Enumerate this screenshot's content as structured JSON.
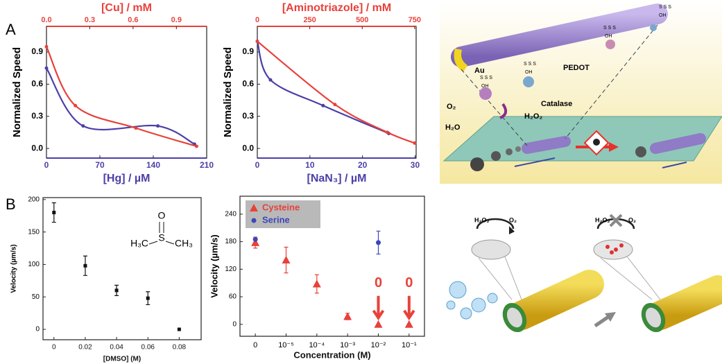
{
  "panel_labels": [
    "A",
    "B"
  ],
  "chart_data": [
    {
      "type": "line",
      "xlabel": "[Hg] / µM",
      "x2label": "[Cu] / mM",
      "ylabel": "Normalized Speed",
      "xcolor": "#4b3fa8",
      "x2color": "#e8413a",
      "xlim": [
        0,
        210
      ],
      "xticks": [
        0,
        70,
        140,
        210
      ],
      "x2lim": [
        0,
        1.11
      ],
      "x2ticks": [
        {
          "value": 0,
          "label": "0.0"
        },
        0.3,
        0.6,
        0.9
      ],
      "ylim": [
        -0.09,
        1.14
      ],
      "yticks": [
        {
          "value": 0,
          "label": "0.0"
        },
        0.3,
        0.6,
        0.9
      ],
      "series": [
        {
          "color": "#4b3fa8",
          "axis": "x",
          "x": [
            0,
            48,
            146,
            194
          ],
          "values": [
            0.75,
            0.21,
            0.21,
            0.04
          ]
        },
        {
          "color": "#e8413a",
          "axis": "x2",
          "x": [
            0,
            0.2,
            0.62,
            1.04
          ],
          "values": [
            0.95,
            0.4,
            0.19,
            0.02
          ]
        }
      ]
    },
    {
      "type": "line",
      "xlabel": "[NaN₃] / µM",
      "x2label": "[Aminotriazole] / mM",
      "ylabel": "Normalized Speed",
      "xcolor": "#4b3fa8",
      "x2color": "#e8413a",
      "xlim": [
        0,
        30.2
      ],
      "xticks": [
        0,
        10,
        20,
        30
      ],
      "x2lim": [
        0,
        757
      ],
      "x2ticks": [
        0,
        250,
        500,
        750
      ],
      "ylim": [
        -0.09,
        1.14
      ],
      "yticks": [
        {
          "value": 0,
          "label": "0.0"
        },
        0.3,
        0.6,
        0.9
      ],
      "series": [
        {
          "color": "#4b3fa8",
          "axis": "x",
          "x": [
            0,
            2.5,
            12.5,
            25
          ],
          "values": [
            1.0,
            0.64,
            0.4,
            0.14
          ]
        },
        {
          "color": "#e8413a",
          "axis": "x2",
          "x": [
            0,
            370,
            620,
            750
          ],
          "values": [
            1.0,
            0.41,
            0.15,
            0.05
          ]
        }
      ]
    },
    {
      "type": "scatter",
      "xlabel": "[DMSO] (M)",
      "ylabel": "Velocity (µm/s)",
      "color": "#111111",
      "xlim": [
        -0.007,
        0.094
      ],
      "xticks": [
        0,
        0.02,
        0.04,
        0.06,
        0.08
      ],
      "ylim": [
        -16,
        203
      ],
      "yticks": [
        0,
        50,
        100,
        150,
        200
      ],
      "x": [
        0,
        0.02,
        0.04,
        0.06,
        0.08
      ],
      "values": [
        180,
        98,
        60,
        48,
        0
      ],
      "errors": [
        15,
        15,
        8,
        10,
        null
      ],
      "structure_labels": [
        "O",
        "S",
        "H₃C",
        "CH₃"
      ]
    },
    {
      "type": "category-scatter",
      "xlabel": "Concentration (M)",
      "ylabel": "Velocity (µm/s)",
      "categories": [
        "0",
        "10⁻⁵",
        "10⁻⁴",
        "10⁻³",
        "10⁻²",
        "10⁻¹"
      ],
      "ylim": [
        -26,
        279
      ],
      "yticks": [
        0,
        60,
        120,
        180,
        240
      ],
      "legend": "top-left",
      "series": [
        {
          "name": "Cysteine",
          "color": "#e8413a",
          "marker": "triangle",
          "values": [
            178,
            140,
            88,
            17,
            0,
            0
          ],
          "errors": [
            12,
            28,
            20,
            7,
            null,
            null
          ]
        },
        {
          "name": "Serine",
          "color": "#3b47b8",
          "marker": "circle",
          "values": [
            185,
            null,
            null,
            null,
            178,
            null
          ],
          "errors": [
            null,
            null,
            null,
            null,
            25,
            null
          ]
        }
      ],
      "annotations": [
        "0",
        "0"
      ]
    }
  ],
  "illustrations": {
    "top": {
      "au": "Au",
      "pedot": "PEDOT",
      "catalase": "Catalase",
      "o2": "O₂",
      "h2o": "H₂O",
      "h2o2": "H₂O₂",
      "sss": "S S S",
      "oh": "OH"
    },
    "bottom": {
      "h2o2": "H₂O₂",
      "o2": "O₂"
    }
  }
}
